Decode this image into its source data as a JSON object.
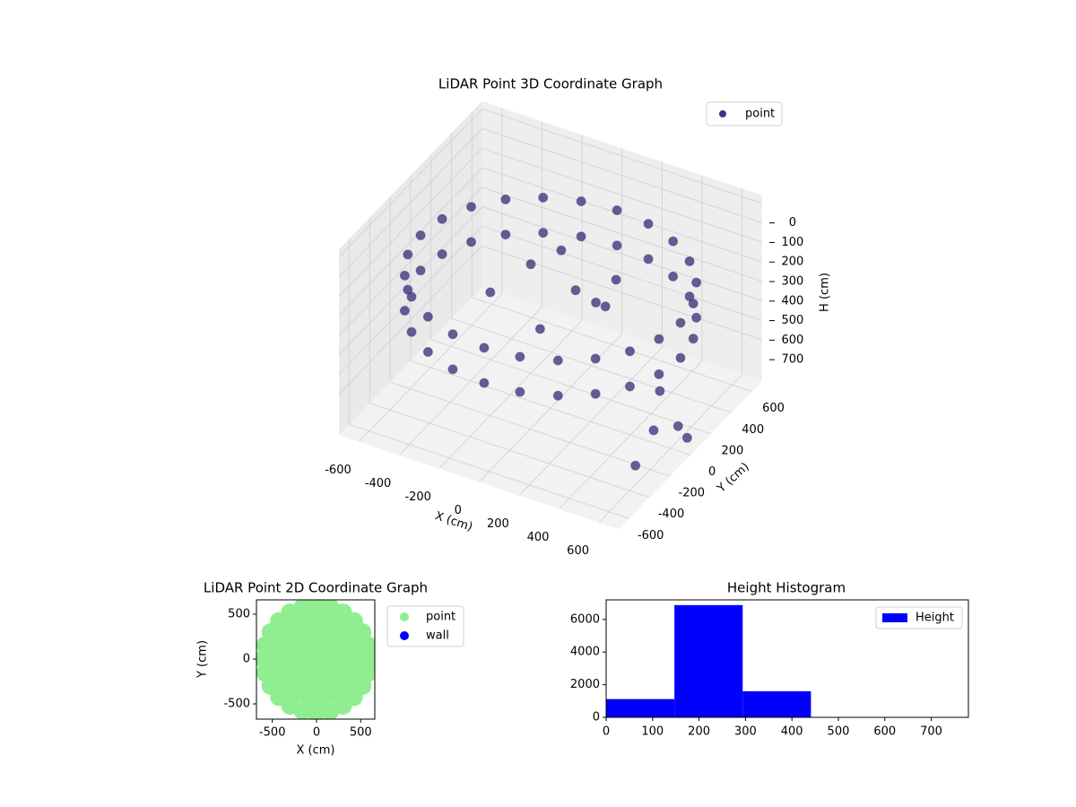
{
  "chart_data": [
    {
      "type": "scatter3d",
      "title": "LiDAR Point 3D Coordinate Graph",
      "xlabel": "X (cm)",
      "ylabel": "Y (cm)",
      "zlabel": "H (cm)",
      "xlim": [
        -700,
        700
      ],
      "ylim": [
        -700,
        700
      ],
      "zlim": [
        -40,
        910
      ],
      "zinverted": true,
      "xticks": [
        -600,
        -400,
        -200,
        0,
        200,
        400,
        600
      ],
      "yticks": [
        -600,
        -400,
        -200,
        0,
        200,
        400,
        600
      ],
      "zticks": [
        0,
        100,
        200,
        300,
        400,
        500,
        600,
        700
      ],
      "grid": true,
      "legend": "upper right",
      "series": [
        {
          "name": "point",
          "color": "#46337e",
          "x": [
            650,
            628,
            563,
            460,
            325,
            168,
            0,
            -168,
            -325,
            -460,
            -563,
            -628,
            -650,
            -628,
            -563,
            -460,
            -325,
            -168,
            0,
            168,
            325,
            460,
            563,
            628,
            650,
            628,
            563,
            460,
            325,
            168,
            0,
            -168,
            -325,
            -460,
            -563,
            -628,
            -650,
            -628,
            -563,
            -460,
            -325,
            -168,
            0,
            168,
            325,
            460,
            563,
            628,
            100,
            -150,
            200,
            -250,
            300,
            50,
            -100,
            150,
            700,
            720,
            740,
            760,
            680
          ],
          "y": [
            0,
            168,
            325,
            460,
            563,
            628,
            650,
            628,
            563,
            460,
            325,
            168,
            0,
            -168,
            -325,
            -460,
            -563,
            -628,
            -650,
            -628,
            -563,
            -460,
            -325,
            -168,
            0,
            168,
            325,
            460,
            563,
            628,
            650,
            628,
            563,
            460,
            325,
            168,
            0,
            -168,
            -325,
            -460,
            -563,
            -628,
            -650,
            -628,
            -563,
            -460,
            -325,
            -168,
            50,
            100,
            250,
            -100,
            -50,
            -200,
            300,
            150,
            -300,
            -400,
            -200,
            -150,
            -500
          ],
          "h": [
            250,
            250,
            250,
            250,
            250,
            250,
            250,
            250,
            250,
            250,
            250,
            250,
            250,
            250,
            250,
            250,
            250,
            250,
            250,
            250,
            250,
            250,
            250,
            250,
            430,
            430,
            430,
            430,
            430,
            430,
            430,
            430,
            430,
            430,
            430,
            430,
            430,
            430,
            430,
            430,
            430,
            430,
            430,
            430,
            430,
            430,
            430,
            430,
            300,
            280,
            320,
            350,
            260,
            380,
            300,
            400,
            420,
            560,
            640,
            720,
            700
          ]
        }
      ]
    },
    {
      "type": "scatter",
      "title": "LiDAR Point 2D Coordinate Graph",
      "xlabel": "X (cm)",
      "ylabel": "Y (cm)",
      "xlim": [
        -680,
        660
      ],
      "ylim": [
        -670,
        660
      ],
      "xticks": [
        -500,
        0,
        500
      ],
      "yticks": [
        -500,
        0,
        500
      ],
      "legend": "outside right",
      "series": [
        {
          "name": "point",
          "color": "#90ee90",
          "x": [
            0,
            150,
            75,
            -75,
            -150,
            -75,
            75,
            300,
            260,
            150,
            0,
            -150,
            -260,
            -300,
            -260,
            -150,
            0,
            150,
            260,
            450,
            423,
            345,
            225,
            78,
            -78,
            -225,
            -345,
            -423,
            -450,
            -423,
            -345,
            -225,
            -78,
            78,
            225,
            345,
            423,
            600,
            580,
            520,
            424,
            300,
            155,
            0,
            -155,
            -300,
            -424,
            -520,
            -580,
            -600,
            -580,
            -520,
            -424,
            -300,
            -155,
            0,
            155,
            300,
            424,
            520,
            580
          ],
          "y": [
            0,
            0,
            130,
            130,
            0,
            -130,
            -130,
            0,
            150,
            260,
            300,
            260,
            150,
            0,
            -150,
            -260,
            -300,
            -260,
            -150,
            0,
            154,
            289,
            390,
            443,
            443,
            390,
            289,
            154,
            0,
            -154,
            -289,
            -390,
            -443,
            -443,
            -390,
            -289,
            -154,
            0,
            155,
            300,
            424,
            520,
            580,
            600,
            580,
            520,
            424,
            300,
            155,
            0,
            -155,
            -300,
            -424,
            -520,
            -580,
            -600,
            -580,
            -520,
            -424,
            -300,
            -155
          ]
        },
        {
          "name": "wall",
          "color": "#0000ff",
          "x": [],
          "y": []
        }
      ]
    },
    {
      "type": "histogram",
      "title": "Height Histogram",
      "xlim": [
        0,
        780
      ],
      "ylim": [
        0,
        7200
      ],
      "xticks": [
        0,
        100,
        200,
        300,
        400,
        500,
        600,
        700
      ],
      "yticks": [
        0,
        2000,
        4000,
        6000
      ],
      "legend": "upper right",
      "bins": [
        0,
        147,
        294,
        441,
        588,
        735
      ],
      "series": [
        {
          "name": "Height",
          "color": "#0000ff",
          "values": [
            1120,
            6880,
            1600,
            0,
            0
          ]
        }
      ]
    }
  ]
}
